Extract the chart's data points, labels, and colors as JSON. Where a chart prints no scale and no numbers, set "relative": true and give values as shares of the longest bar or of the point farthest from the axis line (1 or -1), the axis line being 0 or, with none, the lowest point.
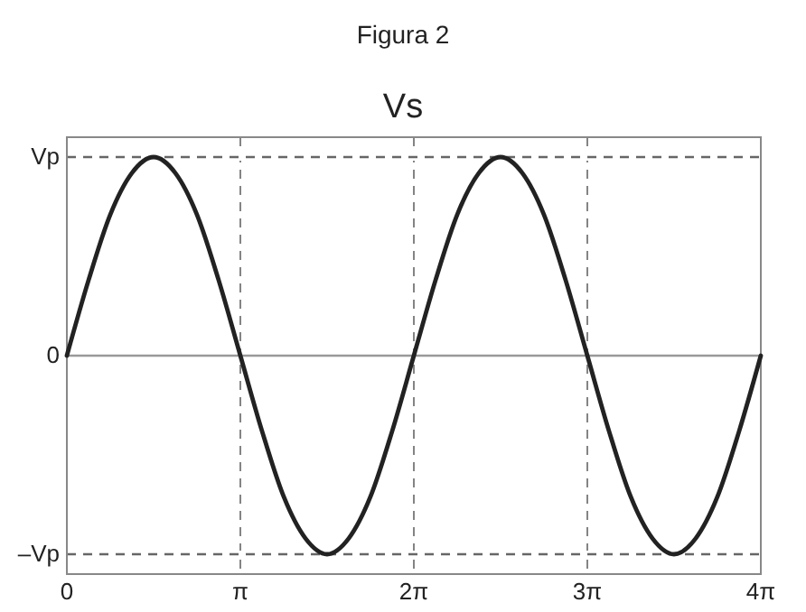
{
  "chart_data": {
    "type": "line",
    "title": "Figura 2",
    "subtitle": "Vs",
    "relative": true,
    "x": [
      0,
      0.3927,
      0.7854,
      1.1781,
      1.5708,
      1.9635,
      2.3562,
      2.7489,
      3.1416,
      3.5343,
      3.927,
      4.3197,
      4.7124,
      5.1051,
      5.4978,
      5.8905,
      6.2832,
      6.6759,
      7.0686,
      7.4613,
      7.854,
      8.2467,
      8.6394,
      9.0321,
      9.4248,
      9.8175,
      10.2102,
      10.6029,
      10.9956,
      11.3883,
      11.781,
      12.1737,
      12.5664
    ],
    "series": [
      {
        "color": "#222222",
        "values": [
          0,
          0.38,
          0.71,
          0.92,
          1,
          0.92,
          0.71,
          0.38,
          0,
          -0.38,
          -0.71,
          -0.92,
          -1,
          -0.92,
          -0.71,
          -0.38,
          0,
          0.38,
          0.71,
          0.92,
          1,
          0.92,
          0.71,
          0.38,
          0,
          -0.38,
          -0.71,
          -0.92,
          -1,
          -0.92,
          -0.71,
          -0.38,
          0
        ]
      }
    ],
    "xlim": [
      0,
      12.5664
    ],
    "xticks": [
      0,
      {
        "value": 3.1416,
        "label": "π"
      },
      {
        "value": 6.2832,
        "label": "2π"
      },
      {
        "value": 9.4248,
        "label": "3π"
      },
      {
        "value": 12.5664,
        "label": "4π"
      }
    ],
    "grid": "x",
    "line_style": "solid",
    "marker": "none",
    "ref_lines": [
      {
        "axis": "y",
        "value": 1,
        "label": "Vp",
        "color": "#666666",
        "line_style": "dashed"
      },
      {
        "axis": "y",
        "value": 0,
        "label": "0",
        "color": "#999999",
        "line_style": "solid"
      },
      {
        "axis": "y",
        "value": -1,
        "label": "–Vp",
        "color": "#666666",
        "line_style": "dashed"
      }
    ]
  }
}
